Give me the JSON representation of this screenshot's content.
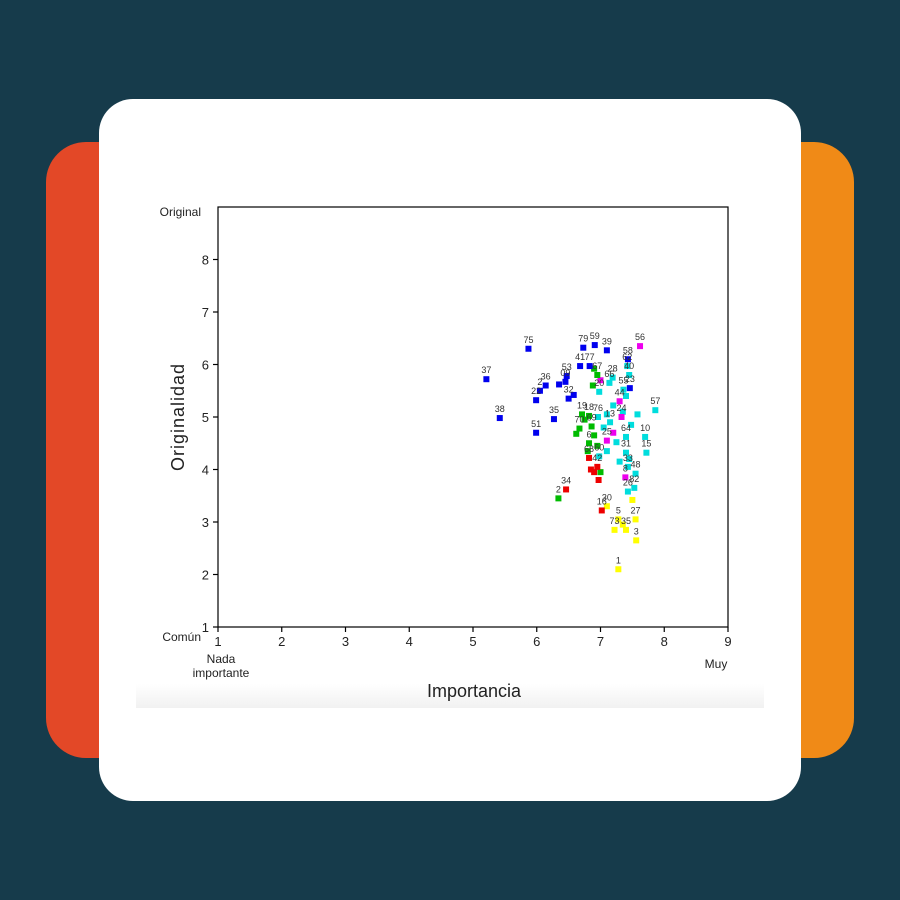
{
  "colors": {
    "background": "#163b4b",
    "left_tab": "#e34827",
    "right_tab": "#f08a17",
    "card": "#ffffff"
  },
  "chart_data": {
    "type": "scatter",
    "xlabel": "Importancia",
    "ylabel": "Originalidad",
    "xlim": [
      1,
      9
    ],
    "ylim": [
      1,
      9
    ],
    "x_ticks": [
      "1",
      "2",
      "3",
      "4",
      "5",
      "6",
      "7",
      "8",
      "9"
    ],
    "y_ticks": [
      "1",
      "2",
      "3",
      "4",
      "5",
      "6",
      "7",
      "8"
    ],
    "y_top_label": "Original",
    "y_bottom_label": "Común",
    "x_left_label_line1": "Nada",
    "x_left_label_line2": "importante",
    "x_right_label": "Muy",
    "grid": false,
    "points": [
      {
        "label": "75",
        "x": 5.87,
        "y": 6.3,
        "color": "#0000ee"
      },
      {
        "label": "37",
        "x": 5.21,
        "y": 5.72,
        "color": "#0000ee"
      },
      {
        "label": "38",
        "x": 5.42,
        "y": 4.98,
        "color": "#0000ee"
      },
      {
        "label": "51",
        "x": 5.99,
        "y": 4.7,
        "color": "#0000ee"
      },
      {
        "label": "35",
        "x": 6.27,
        "y": 4.96,
        "color": "#0000ee"
      },
      {
        "label": "36",
        "x": 6.14,
        "y": 5.6,
        "color": "#0000ee"
      },
      {
        "label": "2",
        "x": 6.05,
        "y": 5.5,
        "color": "#0000ee"
      },
      {
        "label": "22",
        "x": 5.99,
        "y": 5.32,
        "color": "#0000ee"
      },
      {
        "label": "53",
        "x": 6.47,
        "y": 5.78,
        "color": "#0000ee"
      },
      {
        "label": "09",
        "x": 6.45,
        "y": 5.67,
        "color": "#0000ee"
      },
      {
        "label": "32",
        "x": 6.5,
        "y": 5.35,
        "color": "#0000ee"
      },
      {
        "label": "79",
        "x": 6.73,
        "y": 6.32,
        "color": "#0000ee"
      },
      {
        "label": "59",
        "x": 6.91,
        "y": 6.37,
        "color": "#0000ee"
      },
      {
        "label": "39",
        "x": 7.1,
        "y": 6.27,
        "color": "#0000ee"
      },
      {
        "label": "41",
        "x": 6.68,
        "y": 5.97,
        "color": "#0000ee"
      },
      {
        "label": "77",
        "x": 6.83,
        "y": 5.97,
        "color": "#0000ee"
      },
      {
        "label": "67",
        "x": 6.95,
        "y": 5.8,
        "color": "#00bb00"
      },
      {
        "label": "58",
        "x": 7.43,
        "y": 6.1,
        "color": "#0000ee"
      },
      {
        "label": "56",
        "x": 7.62,
        "y": 6.35,
        "color": "#ee00ee"
      },
      {
        "label": "62",
        "x": 7.42,
        "y": 5.97,
        "color": "#00dddd"
      },
      {
        "label": "28",
        "x": 7.19,
        "y": 5.75,
        "color": "#00dddd"
      },
      {
        "label": "66",
        "x": 7.14,
        "y": 5.65,
        "color": "#00dddd"
      },
      {
        "label": "40",
        "x": 7.45,
        "y": 5.8,
        "color": "#00dddd"
      },
      {
        "label": "55",
        "x": 7.36,
        "y": 5.52,
        "color": "#00dddd"
      },
      {
        "label": "23",
        "x": 7.46,
        "y": 5.55,
        "color": "#0000ee"
      },
      {
        "label": "44",
        "x": 7.3,
        "y": 5.3,
        "color": "#ee00ee"
      },
      {
        "label": "57",
        "x": 7.86,
        "y": 5.13,
        "color": "#00dddd"
      },
      {
        "label": "20",
        "x": 6.98,
        "y": 5.48,
        "color": "#00dddd"
      },
      {
        "label": "19",
        "x": 6.71,
        "y": 5.05,
        "color": "#00bb00"
      },
      {
        "label": "18",
        "x": 6.82,
        "y": 5.02,
        "color": "#00bb00"
      },
      {
        "label": "76",
        "x": 6.96,
        "y": 5.0,
        "color": "#00dddd"
      },
      {
        "label": "70",
        "x": 6.67,
        "y": 4.78,
        "color": "#00bb00"
      },
      {
        "label": "69",
        "x": 6.86,
        "y": 4.82,
        "color": "#00bb00"
      },
      {
        "label": "13",
        "x": 7.15,
        "y": 4.9,
        "color": "#00dddd"
      },
      {
        "label": "24",
        "x": 7.33,
        "y": 5.0,
        "color": "#ee00ee"
      },
      {
        "label": "64",
        "x": 7.4,
        "y": 4.62,
        "color": "#00dddd"
      },
      {
        "label": "10",
        "x": 7.7,
        "y": 4.62,
        "color": "#00dddd"
      },
      {
        "label": "15",
        "x": 7.72,
        "y": 4.32,
        "color": "#00dddd"
      },
      {
        "label": "31",
        "x": 7.4,
        "y": 4.32,
        "color": "#00dddd"
      },
      {
        "label": "6",
        "x": 6.82,
        "y": 4.5,
        "color": "#00bb00"
      },
      {
        "label": "25",
        "x": 7.1,
        "y": 4.55,
        "color": "#ee00ee"
      },
      {
        "label": "60",
        "x": 6.98,
        "y": 4.25,
        "color": "#00dddd"
      },
      {
        "label": "68",
        "x": 6.82,
        "y": 4.22,
        "color": "#ee0000"
      },
      {
        "label": "42",
        "x": 6.95,
        "y": 4.05,
        "color": "#ee0000"
      },
      {
        "label": "33",
        "x": 7.43,
        "y": 4.05,
        "color": "#00dddd"
      },
      {
        "label": "48",
        "x": 7.55,
        "y": 3.92,
        "color": "#00dddd"
      },
      {
        "label": "8",
        "x": 7.39,
        "y": 3.85,
        "color": "#ee00ee"
      },
      {
        "label": "82",
        "x": 7.53,
        "y": 3.65,
        "color": "#00dddd"
      },
      {
        "label": "26",
        "x": 7.43,
        "y": 3.58,
        "color": "#00dddd"
      },
      {
        "label": "34",
        "x": 6.46,
        "y": 3.62,
        "color": "#ee0000"
      },
      {
        "label": "2",
        "x": 6.34,
        "y": 3.45,
        "color": "#00bb00"
      },
      {
        "label": "30",
        "x": 7.1,
        "y": 3.3,
        "color": "#ffff00"
      },
      {
        "label": "16",
        "x": 7.02,
        "y": 3.22,
        "color": "#ee0000"
      },
      {
        "label": "5",
        "x": 7.28,
        "y": 3.05,
        "color": "#ffff00"
      },
      {
        "label": "27",
        "x": 7.55,
        "y": 3.05,
        "color": "#ffff00"
      },
      {
        "label": "73",
        "x": 7.22,
        "y": 2.85,
        "color": "#ffff00"
      },
      {
        "label": "35",
        "x": 7.4,
        "y": 2.85,
        "color": "#ffff00"
      },
      {
        "label": "3",
        "x": 7.56,
        "y": 2.65,
        "color": "#ffff00"
      },
      {
        "label": "1",
        "x": 7.28,
        "y": 2.1,
        "color": "#ffff00"
      }
    ],
    "extra_points": [
      {
        "x": 6.58,
        "y": 5.42,
        "color": "#0000ee"
      },
      {
        "x": 6.35,
        "y": 5.62,
        "color": "#0000ee"
      },
      {
        "x": 6.9,
        "y": 5.92,
        "color": "#00bb00"
      },
      {
        "x": 6.88,
        "y": 5.6,
        "color": "#00bb00"
      },
      {
        "x": 7.0,
        "y": 5.7,
        "color": "#ee00ee"
      },
      {
        "x": 6.62,
        "y": 4.68,
        "color": "#00bb00"
      },
      {
        "x": 6.75,
        "y": 4.95,
        "color": "#00bb00"
      },
      {
        "x": 6.9,
        "y": 4.65,
        "color": "#00bb00"
      },
      {
        "x": 7.05,
        "y": 4.8,
        "color": "#00dddd"
      },
      {
        "x": 7.2,
        "y": 4.7,
        "color": "#ee00ee"
      },
      {
        "x": 7.25,
        "y": 4.52,
        "color": "#00dddd"
      },
      {
        "x": 7.1,
        "y": 4.35,
        "color": "#00dddd"
      },
      {
        "x": 6.95,
        "y": 4.45,
        "color": "#00bb00"
      },
      {
        "x": 6.8,
        "y": 4.35,
        "color": "#00bb00"
      },
      {
        "x": 6.85,
        "y": 4.0,
        "color": "#ee0000"
      },
      {
        "x": 6.9,
        "y": 3.95,
        "color": "#ee0000"
      },
      {
        "x": 7.0,
        "y": 3.95,
        "color": "#00bb00"
      },
      {
        "x": 6.97,
        "y": 3.8,
        "color": "#ee0000"
      },
      {
        "x": 7.3,
        "y": 4.15,
        "color": "#00dddd"
      },
      {
        "x": 7.45,
        "y": 4.2,
        "color": "#00dddd"
      },
      {
        "x": 7.5,
        "y": 3.42,
        "color": "#ffff00"
      },
      {
        "x": 7.35,
        "y": 2.95,
        "color": "#ffff00"
      },
      {
        "x": 7.48,
        "y": 4.85,
        "color": "#00dddd"
      },
      {
        "x": 7.35,
        "y": 5.1,
        "color": "#00dddd"
      },
      {
        "x": 7.58,
        "y": 5.05,
        "color": "#00dddd"
      },
      {
        "x": 7.1,
        "y": 5.05,
        "color": "#00dddd"
      },
      {
        "x": 7.4,
        "y": 5.4,
        "color": "#00dddd"
      },
      {
        "x": 7.2,
        "y": 5.22,
        "color": "#00dddd"
      }
    ]
  }
}
